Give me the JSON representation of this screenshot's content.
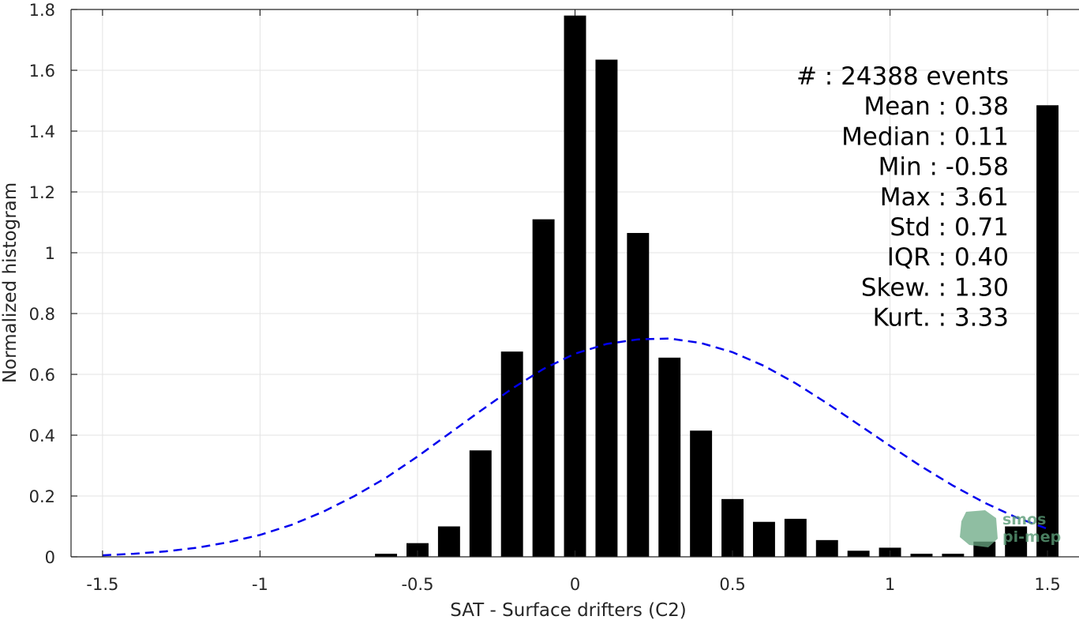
{
  "chart_data": {
    "type": "bar",
    "xlabel": "SAT - Surface drifters (C2)",
    "ylabel": "Normalized histogram",
    "xlim": [
      -1.6,
      1.6
    ],
    "ylim": [
      0,
      1.8
    ],
    "xticks": [
      -1.5,
      -1,
      -0.5,
      0,
      0.5,
      1,
      1.5
    ],
    "xtick_labels": [
      "-1.5",
      "-1",
      "-0.5",
      "0",
      "0.5",
      "1",
      "1.5"
    ],
    "yticks": [
      0,
      0.2,
      0.4,
      0.6,
      0.8,
      1,
      1.2,
      1.4,
      1.6,
      1.8
    ],
    "ytick_labels": [
      "0",
      "0.2",
      "0.4",
      "0.6",
      "0.8",
      "1",
      "1.2",
      "1.4",
      "1.6",
      "1.8"
    ],
    "grid": true,
    "bar_width": 0.07,
    "bars": {
      "x": [
        -0.6,
        -0.5,
        -0.4,
        -0.3,
        -0.2,
        -0.1,
        0.0,
        0.1,
        0.2,
        0.3,
        0.4,
        0.5,
        0.6,
        0.7,
        0.8,
        0.9,
        1.0,
        1.1,
        1.2,
        1.3,
        1.4,
        1.5
      ],
      "values": [
        0.01,
        0.045,
        0.1,
        0.35,
        0.675,
        1.11,
        1.78,
        1.635,
        1.065,
        0.655,
        0.415,
        0.19,
        0.115,
        0.125,
        0.055,
        0.02,
        0.03,
        0.01,
        0.01,
        0.05,
        0.1,
        1.485
      ],
      "color": "#000000"
    },
    "fit_curve": {
      "style": "dashed",
      "color": "#0000ee",
      "x": [
        -1.5,
        -1.4,
        -1.3,
        -1.2,
        -1.1,
        -1.0,
        -0.9,
        -0.8,
        -0.7,
        -0.6,
        -0.5,
        -0.4,
        -0.3,
        -0.2,
        -0.1,
        0.0,
        0.1,
        0.2,
        0.3,
        0.4,
        0.5,
        0.6,
        0.7,
        0.8,
        0.9,
        1.0,
        1.1,
        1.2,
        1.3,
        1.4,
        1.5
      ],
      "values": [
        0.005,
        0.01,
        0.018,
        0.03,
        0.048,
        0.072,
        0.105,
        0.148,
        0.2,
        0.26,
        0.33,
        0.405,
        0.48,
        0.553,
        0.618,
        0.668,
        0.7,
        0.715,
        0.718,
        0.703,
        0.673,
        0.628,
        0.571,
        0.505,
        0.435,
        0.365,
        0.297,
        0.234,
        0.178,
        0.13,
        0.092
      ]
    },
    "annotations": [
      "#  : 24388 events",
      "Mean : 0.38",
      "Median : 0.11",
      "Min : -0.58",
      "Max : 3.61",
      "Std : 0.71",
      "IQR : 0.40",
      "Skew. : 1.30",
      "Kurt. : 3.33"
    ]
  },
  "logo": {
    "line1": "smos",
    "line2": "pi-mep"
  }
}
